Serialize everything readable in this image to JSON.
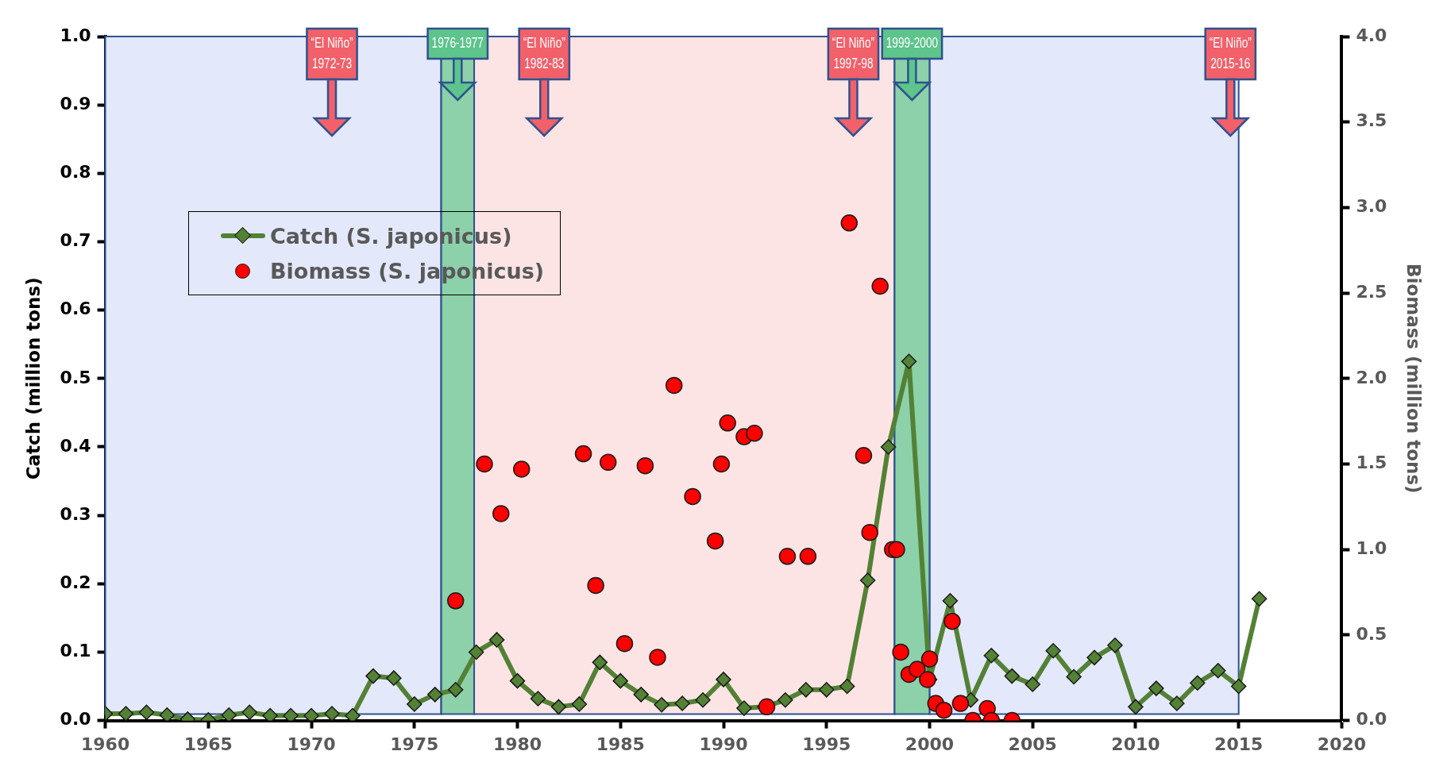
{
  "chart_data": {
    "type": "line",
    "ylabel": "Catch (million tons)",
    "y2label": "Biomass (million tons)",
    "x": [
      1960,
      1961,
      1962,
      1963,
      1964,
      1965,
      1966,
      1967,
      1968,
      1969,
      1970,
      1971,
      1972,
      1973,
      1974,
      1975,
      1976,
      1977,
      1978,
      1979,
      1980,
      1981,
      1982,
      1983,
      1984,
      1985,
      1986,
      1987,
      1988,
      1989,
      1990,
      1991,
      1992,
      1993,
      1994,
      1995,
      1996,
      1997,
      1998,
      1999,
      2000,
      2001,
      2002,
      2003,
      2004,
      2005,
      2006,
      2007,
      2008,
      2009,
      2010,
      2011,
      2012,
      2013,
      2014,
      2015,
      2016
    ],
    "series": [
      {
        "name": "Catch (S. japonicus)",
        "type": "line",
        "marker": "diamond",
        "color": "#538135",
        "values": [
          0.01,
          0.01,
          0.012,
          0.008,
          0.002,
          0.001,
          0.008,
          0.012,
          0.007,
          0.007,
          0.007,
          0.01,
          0.007,
          0.065,
          0.062,
          0.024,
          0.038,
          0.045,
          0.1,
          0.118,
          0.058,
          0.032,
          0.02,
          0.024,
          0.085,
          0.058,
          0.038,
          0.023,
          0.025,
          0.03,
          0.06,
          0.018,
          0.02,
          0.03,
          0.045,
          0.045,
          0.05,
          0.205,
          0.4,
          0.525,
          0.06,
          0.175,
          0.03,
          0.095,
          0.065,
          0.053,
          0.102,
          0.064,
          0.092,
          0.11,
          0.02,
          0.047,
          0.025,
          0.055,
          0.073,
          0.05,
          0.178
        ]
      },
      {
        "name": "Biomass (S. japonicus)",
        "type": "scatter",
        "marker": "circle",
        "color": "#ff0000",
        "axis": "y2",
        "x": [
          1977.0,
          1978.4,
          1979.2,
          1980.2,
          1983.2,
          1983.8,
          1984.4,
          1985.2,
          1986.2,
          1986.8,
          1987.6,
          1988.5,
          1989.6,
          1989.9,
          1990.2,
          1991.0,
          1991.5,
          1992.1,
          1993.1,
          1994.1,
          1996.1,
          1996.8,
          1997.1,
          1997.6,
          1998.2,
          1998.4,
          1998.6,
          1999.0,
          1999.4,
          1999.9,
          2000.0,
          2000.3,
          2000.7,
          2001.1,
          2001.5,
          2002.1,
          2002.8,
          2003.0,
          2004.0
        ],
        "values": [
          0.7,
          1.5,
          1.21,
          1.47,
          1.56,
          0.79,
          1.51,
          0.45,
          1.49,
          0.37,
          1.96,
          1.31,
          1.05,
          1.5,
          1.74,
          1.66,
          1.68,
          0.08,
          0.96,
          0.96,
          2.91,
          1.55,
          1.1,
          2.54,
          1.0,
          1.0,
          0.4,
          0.27,
          0.3,
          0.24,
          0.36,
          0.1,
          0.06,
          0.58,
          0.1,
          0.0,
          0.07,
          0.0,
          0.0
        ]
      }
    ],
    "xlim": [
      1960,
      2020
    ],
    "xticks": [
      1960,
      1965,
      1970,
      1975,
      1980,
      1985,
      1990,
      1995,
      2000,
      2005,
      2010,
      2015,
      2020
    ],
    "ylim": [
      0,
      1
    ],
    "yticks": [
      {
        "value": 0,
        "label": "0.0"
      },
      0.1,
      0.2,
      0.3,
      0.4,
      0.5,
      0.6,
      0.7,
      0.8,
      0.9,
      {
        "value": 1,
        "label": "1.0"
      }
    ],
    "y2lim": [
      0,
      4
    ],
    "y2ticks": [
      {
        "value": 0,
        "label": "0.0"
      },
      0.5,
      {
        "value": 1,
        "label": "1.0"
      },
      1.5,
      {
        "value": 2,
        "label": "2.0"
      },
      2.5,
      {
        "value": 3,
        "label": "3.0"
      },
      3.5,
      {
        "value": 4,
        "label": "4.0"
      }
    ],
    "grid": false,
    "legend": "top left",
    "bands": [
      {
        "axis": "x",
        "from": 1960,
        "to": 1976.3,
        "color": "#e4e8fb"
      },
      {
        "axis": "x",
        "from": 1977.9,
        "to": 1998.3,
        "color": "#fde4e4"
      },
      {
        "axis": "x",
        "from": 2000,
        "to": 2015,
        "color": "#e4e8fb"
      },
      {
        "axis": "x",
        "from": 1976.3,
        "to": 1977.9,
        "color": "#66c28c",
        "label": "1976-1977"
      },
      {
        "axis": "x",
        "from": 1998.3,
        "to": 2000,
        "color": "#66c28c",
        "label": "1999-2000"
      }
    ],
    "ref_lines": [
      {
        "axis": "x",
        "value": 1971,
        "label": "“El Niño”\n1972-73",
        "color": "#f2606a"
      },
      {
        "axis": "x",
        "value": 1981.3,
        "label": "“El Niño”\n1982-83",
        "color": "#f2606a"
      },
      {
        "axis": "x",
        "value": 1996.3,
        "label": "“El Niño”\n1997-98",
        "color": "#f2606a"
      },
      {
        "axis": "x",
        "value": 2014.6,
        "label": "“El Niño”\n2015-16",
        "color": "#f2606a"
      }
    ]
  }
}
